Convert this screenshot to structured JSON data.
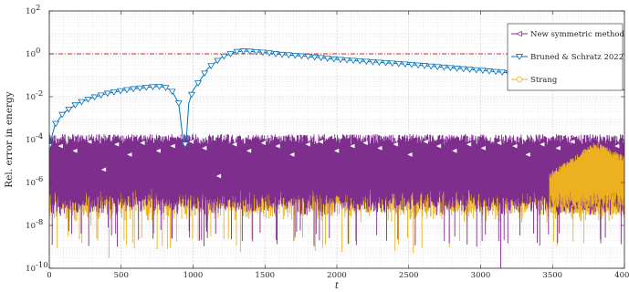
{
  "chart_data": {
    "type": "line",
    "title": "",
    "xlabel": "t",
    "ylabel": "Rel. error in energy",
    "xscale": "linear",
    "yscale": "log",
    "xlim": [
      0,
      4000
    ],
    "ylim": [
      1e-10,
      100
    ],
    "x_ticks": [
      0,
      500,
      1000,
      1500,
      2000,
      2500,
      3000,
      3500,
      4000
    ],
    "x_tick_labels": [
      "0",
      "500",
      "1000",
      "1500",
      "2000",
      "2500",
      "3000",
      "3500",
      "4000"
    ],
    "y_ticks": [
      1e-10,
      1e-08,
      1e-06,
      0.0001,
      0.01,
      1,
      100
    ],
    "y_tick_labels": [
      {
        "base": "10",
        "exp": "-10"
      },
      {
        "base": "10",
        "exp": "-8"
      },
      {
        "base": "10",
        "exp": "-6"
      },
      {
        "base": "10",
        "exp": "-4"
      },
      {
        "base": "10",
        "exp": "-2"
      },
      {
        "base": "10",
        "exp": "0"
      },
      {
        "base": "10",
        "exp": "2"
      }
    ],
    "grid": true,
    "legend_position": "top-right",
    "reference_line": {
      "y": 1,
      "color": "#d62728",
      "style": "dash-dot"
    },
    "series": [
      {
        "name": "New symmetric method",
        "color": "#7e2f8e",
        "marker": "triangle-left",
        "style": "dense-noise",
        "upper_envelope": 0.00018,
        "typical_low": 2e-07,
        "deep_dips": [
          {
            "x": 3140,
            "y": 1e-10
          },
          {
            "x": 2820,
            "y": 3e-09
          },
          {
            "x": 1720,
            "y": 5e-09
          },
          {
            "x": 410,
            "y": 8e-09
          }
        ],
        "marker_x": [
          80,
          180,
          280,
          380,
          470,
          560,
          650,
          760,
          860,
          990,
          1080,
          1180,
          1290,
          1390,
          1490,
          1590,
          1690,
          1800,
          1890,
          2000,
          2110,
          2200,
          2300,
          2410,
          2510,
          2620,
          2710,
          2820,
          2920,
          3020,
          3130,
          3240,
          3330,
          3430,
          3540,
          3640,
          3760,
          3860,
          3950
        ],
        "marker_y": [
          5e-05,
          3e-05,
          8e-05,
          4e-06,
          6e-05,
          2e-05,
          7e-05,
          3e-05,
          5e-05,
          8e-05,
          4e-05,
          2e-06,
          6e-05,
          3e-05,
          7e-05,
          5e-05,
          2e-05,
          6e-05,
          8e-05,
          3e-05,
          5e-05,
          7e-05,
          4e-05,
          6e-05,
          2e-05,
          8e-05,
          5e-05,
          3e-05,
          6e-05,
          4e-05,
          7e-05,
          5e-05,
          2e-05,
          6e-05,
          4e-05,
          8e-05,
          3e-05,
          0.00015,
          5e-05
        ]
      },
      {
        "name": "Bruned & Schratz 2022",
        "color": "#0072bd",
        "marker": "triangle-down",
        "style": "line",
        "x": [
          0,
          40,
          100,
          200,
          300,
          400,
          500,
          600,
          700,
          760,
          800,
          850,
          900,
          930,
          950,
          970,
          1000,
          1050,
          1100,
          1200,
          1300,
          1350,
          1400,
          1500,
          1600,
          1800,
          2000,
          2500,
          3000,
          3500,
          3900,
          4000
        ],
        "y": [
          5e-05,
          0.0005,
          0.0018,
          0.005,
          0.009,
          0.014,
          0.019,
          0.024,
          0.028,
          0.03,
          0.028,
          0.02,
          0.005,
          0.0001,
          5e-05,
          0.005,
          0.02,
          0.06,
          0.2,
          0.7,
          1.25,
          1.35,
          1.3,
          1.15,
          0.95,
          0.75,
          0.55,
          0.32,
          0.17,
          0.085,
          0.045,
          0.02
        ]
      },
      {
        "name": "Strang",
        "color": "#edb120",
        "marker": "circle",
        "style": "dense-noise",
        "upper_envelope": 2e-06,
        "typical_low": 1e-07,
        "late_bump": {
          "x_start": 3480,
          "x_peak": 3800,
          "y_peak": 8e-05
        },
        "deep_dips": [
          {
            "x": 415,
            "y": 3e-10
          },
          {
            "x": 290,
            "y": 1e-08
          },
          {
            "x": 1090,
            "y": 8e-09
          },
          {
            "x": 2380,
            "y": 1.5e-08
          }
        ],
        "marker_x": [
          3660,
          3720,
          3830
        ],
        "marker_y": [
          2e-06,
          1e-06,
          9e-06
        ]
      }
    ]
  }
}
